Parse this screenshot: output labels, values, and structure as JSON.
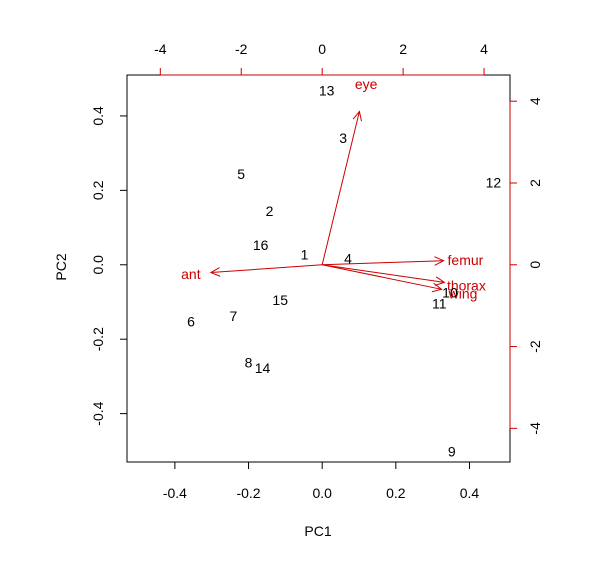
{
  "chart_data": {
    "type": "scatter",
    "subtype": "biplot",
    "title": "",
    "xlabel": "PC1",
    "ylabel": "PC2",
    "xlim": [
      -0.53,
      0.51
    ],
    "ylim": [
      -0.53,
      0.51
    ],
    "x_ticks": [
      -0.4,
      -0.2,
      0.0,
      0.2,
      0.4
    ],
    "x_tick_labels": [
      "-0.4",
      "-0.2",
      "0.0",
      "0.2",
      "0.4"
    ],
    "y_ticks": [
      -0.4,
      -0.2,
      0.0,
      0.2,
      0.4
    ],
    "y_tick_labels": [
      "-0.4",
      "-0.2",
      "0.0",
      "0.2",
      "0.4"
    ],
    "secondary_x_ticks": [
      -4,
      -2,
      0,
      2,
      4
    ],
    "secondary_x_tick_labels": [
      "-4",
      "-2",
      "0",
      "2",
      "4"
    ],
    "secondary_y_ticks": [
      -4,
      -2,
      0,
      2,
      4
    ],
    "secondary_y_tick_labels": [
      "-4",
      "-2",
      "0",
      "2",
      "4"
    ],
    "secondary_scale": 9.1,
    "grid": false,
    "points": [
      {
        "label": "1",
        "x": -0.048,
        "y": 0.028
      },
      {
        "label": "2",
        "x": -0.143,
        "y": 0.144
      },
      {
        "label": "3",
        "x": 0.057,
        "y": 0.341
      },
      {
        "label": "4",
        "x": 0.07,
        "y": 0.017
      },
      {
        "label": "5",
        "x": -0.22,
        "y": 0.244
      },
      {
        "label": "6",
        "x": -0.356,
        "y": -0.153
      },
      {
        "label": "7",
        "x": -0.241,
        "y": -0.138
      },
      {
        "label": "8",
        "x": -0.2,
        "y": -0.262
      },
      {
        "label": "9",
        "x": 0.352,
        "y": -0.502
      },
      {
        "label": "10",
        "x": 0.347,
        "y": -0.074
      },
      {
        "label": "11",
        "x": 0.318,
        "y": -0.104
      },
      {
        "label": "12",
        "x": 0.465,
        "y": 0.221
      },
      {
        "label": "13",
        "x": 0.012,
        "y": 0.469
      },
      {
        "label": "14",
        "x": -0.162,
        "y": -0.277
      },
      {
        "label": "15",
        "x": -0.114,
        "y": -0.095
      },
      {
        "label": "16",
        "x": -0.167,
        "y": 0.053
      }
    ],
    "loadings": [
      {
        "label": "eye",
        "x": 0.92,
        "y": 3.75
      },
      {
        "label": "femur",
        "x": 3.0,
        "y": 0.1
      },
      {
        "label": "thorax",
        "x": 3.02,
        "y": -0.43
      },
      {
        "label": "wing",
        "x": 2.95,
        "y": -0.6
      },
      {
        "label": "ant",
        "x": -2.75,
        "y": -0.19
      }
    ],
    "loading_label_text": {
      "eye": "eye",
      "femur": "femur",
      "thorax": "thorax",
      "wing": "wing",
      "ant": "ant"
    },
    "colors": {
      "points": "#000000",
      "loadings": "#cc0000",
      "axes": "#000000"
    }
  }
}
